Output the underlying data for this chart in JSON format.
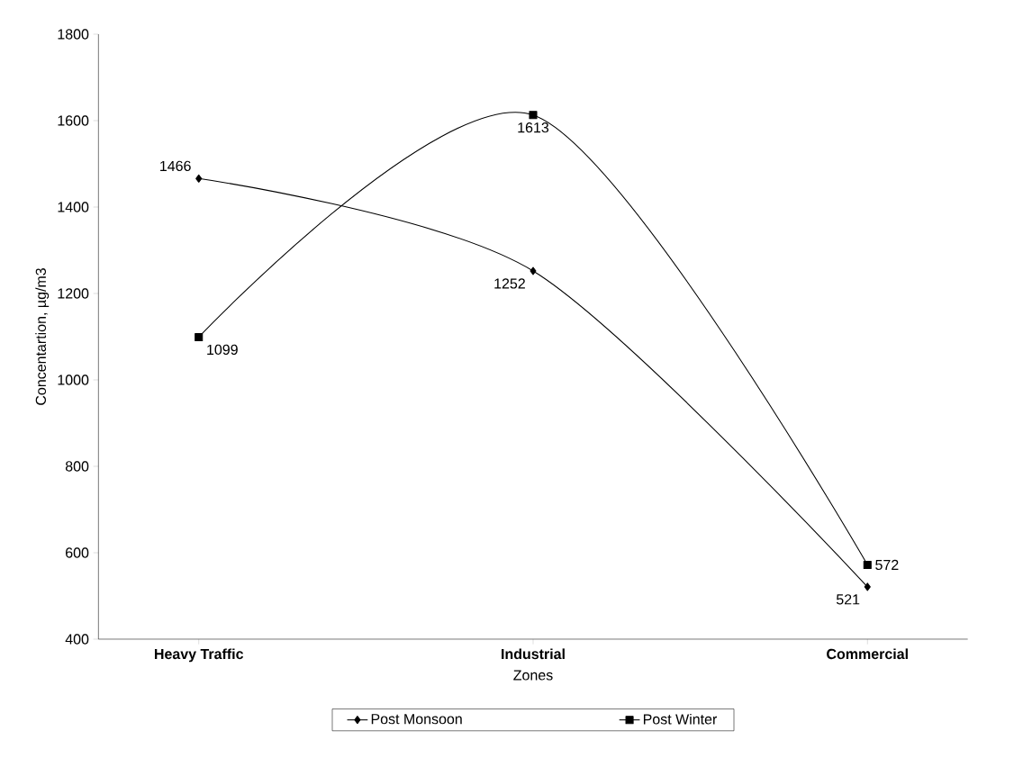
{
  "chart_data": {
    "type": "line",
    "xlabel": "Zones",
    "ylabel": "Concentartion, µg/m3",
    "categories": [
      "Heavy Traffic",
      "Industrial",
      "Commercial"
    ],
    "series": [
      {
        "name": "Post Monsoon",
        "color": "#000000",
        "marker": "diamond",
        "values": [
          1466,
          1252,
          521
        ]
      },
      {
        "name": "Post Winter",
        "color": "#000000",
        "marker": "square",
        "values": [
          1099,
          1613,
          572
        ]
      }
    ],
    "ylim": [
      400,
      1800
    ],
    "yticks": [
      400,
      600,
      800,
      1000,
      1200,
      1400,
      1600,
      1800
    ],
    "data_labels": true,
    "legend": "bottom",
    "grid": false,
    "line_style": "solid"
  }
}
